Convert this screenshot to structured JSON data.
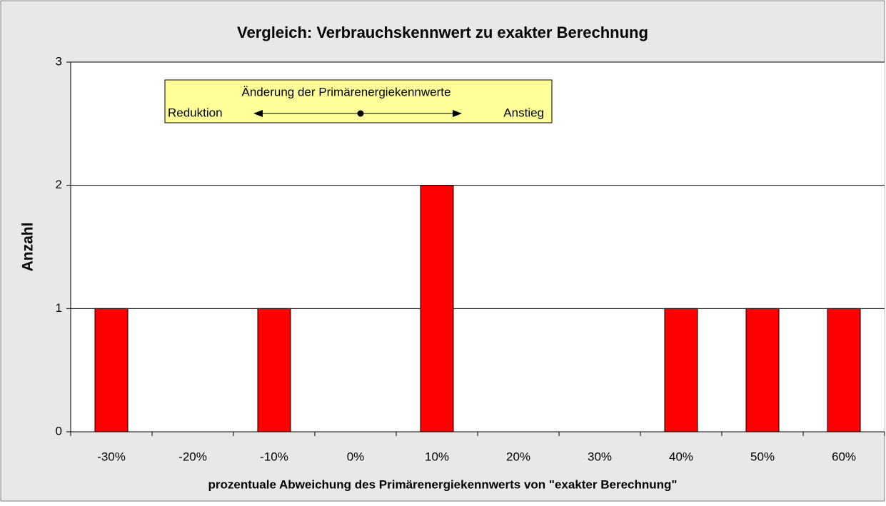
{
  "chart_data": {
    "type": "bar",
    "title": "Vergleich: Verbrauchskennwert zu exakter Berechnung",
    "x_label": "prozentuale Abweichung des Primärenergiekennwerts von \"exakter Berechnung\"",
    "y_label": "Anzahl",
    "categories": [
      "-30%",
      "-20%",
      "-10%",
      "0%",
      "10%",
      "20%",
      "30%",
      "40%",
      "50%",
      "60%"
    ],
    "values": [
      1,
      0,
      1,
      0,
      2,
      0,
      0,
      1,
      1,
      1
    ],
    "color": "#ff0000",
    "ylim": [
      0,
      3
    ],
    "yticks": [
      0,
      1,
      2,
      3
    ],
    "grid": true,
    "annotation": {
      "title": "Änderung der Primärenergiekennwerte",
      "left": "Reduktion",
      "right": "Anstieg"
    }
  }
}
